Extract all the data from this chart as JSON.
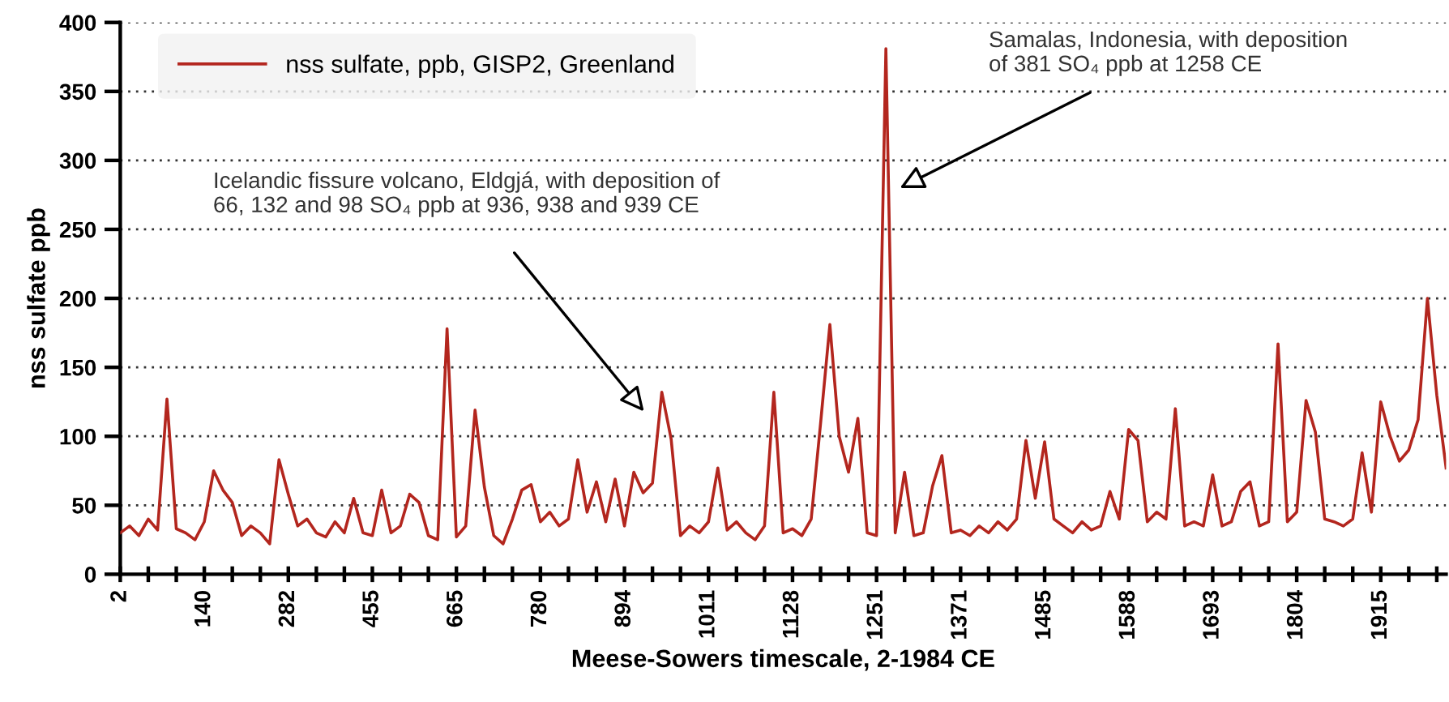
{
  "chart_data": {
    "type": "line",
    "xlabel": "Meese-Sowers timescale, 2-1984 CE",
    "ylabel": "nss sulfate ppb",
    "categories": [
      "2",
      null,
      null,
      null,
      null,
      null,
      null,
      null,
      null,
      "140",
      null,
      null,
      null,
      null,
      null,
      null,
      null,
      null,
      "282",
      null,
      null,
      null,
      null,
      null,
      null,
      null,
      null,
      "455",
      null,
      null,
      null,
      null,
      null,
      null,
      null,
      null,
      "665",
      null,
      null,
      null,
      null,
      null,
      null,
      null,
      null,
      "780",
      null,
      null,
      null,
      null,
      null,
      null,
      null,
      null,
      "894",
      null,
      null,
      null,
      null,
      null,
      null,
      null,
      null,
      "1011",
      null,
      null,
      null,
      null,
      null,
      null,
      null,
      null,
      "1128",
      null,
      null,
      null,
      null,
      null,
      null,
      null,
      null,
      "1251",
      null,
      null,
      null,
      null,
      null,
      null,
      null,
      null,
      "1371",
      null,
      null,
      null,
      null,
      null,
      null,
      null,
      null,
      "1485",
      null,
      null,
      null,
      null,
      null,
      null,
      null,
      null,
      "1588",
      null,
      null,
      null,
      null,
      null,
      null,
      null,
      null,
      "1693",
      null,
      null,
      null,
      null,
      null,
      null,
      null,
      null,
      "1804",
      null,
      null,
      null,
      null,
      null,
      null,
      null,
      null,
      "1915",
      null,
      null,
      null,
      null,
      null,
      null,
      null
    ],
    "ylim": [
      0,
      400
    ],
    "yticks": [
      0,
      50,
      100,
      150,
      200,
      250,
      300,
      350,
      400
    ],
    "grid": "y",
    "legend": "top left",
    "marker": "none",
    "line_style": "solid",
    "annotations": [
      "Icelandic fissure volcano, Eldgjá, with deposition of\n66, 132 and 98 SO₄ ppb at 936, 938 and 939 CE",
      "Samalas, Indonesia, with deposition\nof 381 SO₄ ppb at 1258 CE"
    ],
    "series": [
      {
        "name": "nss sulfate, ppb, GISP2, Greenland",
        "color": "#b3261e",
        "values": [
          30,
          35,
          28,
          40,
          32,
          127,
          33,
          30,
          25,
          38,
          75,
          61,
          52,
          28,
          35,
          30,
          22,
          83,
          58,
          35,
          40,
          30,
          27,
          38,
          30,
          55,
          30,
          28,
          61,
          30,
          35,
          58,
          52,
          28,
          25,
          178,
          27,
          35,
          119,
          63,
          28,
          22,
          40,
          61,
          65,
          38,
          45,
          35,
          40,
          83,
          45,
          67,
          38,
          69,
          35,
          74,
          59,
          66,
          132,
          98,
          28,
          35,
          30,
          38,
          77,
          32,
          38,
          30,
          25,
          35,
          132,
          30,
          33,
          28,
          40,
          109,
          181,
          100,
          74,
          113,
          30,
          28,
          381,
          30,
          74,
          28,
          30,
          64,
          86,
          30,
          32,
          28,
          35,
          30,
          38,
          32,
          40,
          97,
          55,
          96,
          40,
          35,
          30,
          38,
          32,
          35,
          60,
          40,
          105,
          97,
          38,
          45,
          40,
          120,
          35,
          38,
          35,
          72,
          35,
          38,
          60,
          67,
          35,
          38,
          167,
          38,
          45,
          126,
          103,
          40,
          38,
          35,
          40,
          88,
          45,
          125,
          100,
          82,
          90,
          112,
          200,
          130,
          77
        ]
      }
    ]
  }
}
